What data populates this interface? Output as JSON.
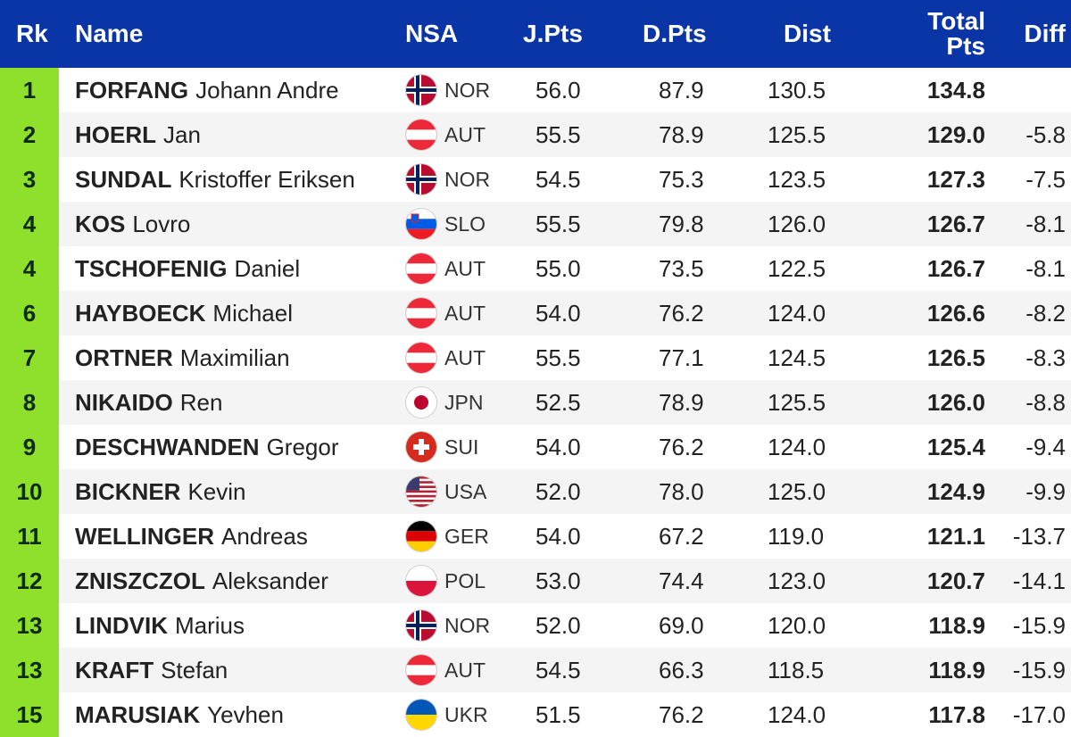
{
  "header": {
    "rk": "Rk",
    "name": "Name",
    "nsa": "NSA",
    "jpts": "J.Pts",
    "dpts": "D.Pts",
    "dist": "Dist",
    "total_line1": "Total",
    "total_line2": "Pts",
    "diff": "Diff"
  },
  "colors": {
    "header_bg": "#0a35a6",
    "rank_bg": "#8ee02a",
    "row_alt": "#f4f4f4"
  },
  "rows": [
    {
      "rank": "1",
      "surname": "FORFANG",
      "given": "Johann Andre",
      "flag": "norway-flag-icon",
      "nsa": "NOR",
      "jpts": "56.0",
      "dpts": "87.9",
      "dist": "130.5",
      "total": "134.8",
      "diff": ""
    },
    {
      "rank": "2",
      "surname": "HOERL",
      "given": "Jan",
      "flag": "austria-flag-icon",
      "nsa": "AUT",
      "jpts": "55.5",
      "dpts": "78.9",
      "dist": "125.5",
      "total": "129.0",
      "diff": "-5.8"
    },
    {
      "rank": "3",
      "surname": "SUNDAL",
      "given": "Kristoffer Eriksen",
      "flag": "norway-flag-icon",
      "nsa": "NOR",
      "jpts": "54.5",
      "dpts": "75.3",
      "dist": "123.5",
      "total": "127.3",
      "diff": "-7.5"
    },
    {
      "rank": "4",
      "surname": "KOS",
      "given": "Lovro",
      "flag": "slovenia-flag-icon",
      "nsa": "SLO",
      "jpts": "55.5",
      "dpts": "79.8",
      "dist": "126.0",
      "total": "126.7",
      "diff": "-8.1"
    },
    {
      "rank": "4",
      "surname": "TSCHOFENIG",
      "given": "Daniel",
      "flag": "austria-flag-icon",
      "nsa": "AUT",
      "jpts": "55.0",
      "dpts": "73.5",
      "dist": "122.5",
      "total": "126.7",
      "diff": "-8.1"
    },
    {
      "rank": "6",
      "surname": "HAYBOECK",
      "given": "Michael",
      "flag": "austria-flag-icon",
      "nsa": "AUT",
      "jpts": "54.0",
      "dpts": "76.2",
      "dist": "124.0",
      "total": "126.6",
      "diff": "-8.2"
    },
    {
      "rank": "7",
      "surname": "ORTNER",
      "given": "Maximilian",
      "flag": "austria-flag-icon",
      "nsa": "AUT",
      "jpts": "55.5",
      "dpts": "77.1",
      "dist": "124.5",
      "total": "126.5",
      "diff": "-8.3"
    },
    {
      "rank": "8",
      "surname": "NIKAIDO",
      "given": "Ren",
      "flag": "japan-flag-icon",
      "nsa": "JPN",
      "jpts": "52.5",
      "dpts": "78.9",
      "dist": "125.5",
      "total": "126.0",
      "diff": "-8.8"
    },
    {
      "rank": "9",
      "surname": "DESCHWANDEN",
      "given": "Gregor",
      "flag": "switzerland-flag-icon",
      "nsa": "SUI",
      "jpts": "54.0",
      "dpts": "76.2",
      "dist": "124.0",
      "total": "125.4",
      "diff": "-9.4"
    },
    {
      "rank": "10",
      "surname": "BICKNER",
      "given": "Kevin",
      "flag": "usa-flag-icon",
      "nsa": "USA",
      "jpts": "52.0",
      "dpts": "78.0",
      "dist": "125.0",
      "total": "124.9",
      "diff": "-9.9"
    },
    {
      "rank": "11",
      "surname": "WELLINGER",
      "given": "Andreas",
      "flag": "germany-flag-icon",
      "nsa": "GER",
      "jpts": "54.0",
      "dpts": "67.2",
      "dist": "119.0",
      "total": "121.1",
      "diff": "-13.7"
    },
    {
      "rank": "12",
      "surname": "ZNISZCZOL",
      "given": "Aleksander",
      "flag": "poland-flag-icon",
      "nsa": "POL",
      "jpts": "53.0",
      "dpts": "74.4",
      "dist": "123.0",
      "total": "120.7",
      "diff": "-14.1"
    },
    {
      "rank": "13",
      "surname": "LINDVIK",
      "given": "Marius",
      "flag": "norway-flag-icon",
      "nsa": "NOR",
      "jpts": "52.0",
      "dpts": "69.0",
      "dist": "120.0",
      "total": "118.9",
      "diff": "-15.9"
    },
    {
      "rank": "13",
      "surname": "KRAFT",
      "given": "Stefan",
      "flag": "austria-flag-icon",
      "nsa": "AUT",
      "jpts": "54.5",
      "dpts": "66.3",
      "dist": "118.5",
      "total": "118.9",
      "diff": "-15.9"
    },
    {
      "rank": "15",
      "surname": "MARUSIAK",
      "given": "Yevhen",
      "flag": "ukraine-flag-icon",
      "nsa": "UKR",
      "jpts": "51.5",
      "dpts": "76.2",
      "dist": "124.0",
      "total": "117.8",
      "diff": "-17.0"
    }
  ]
}
